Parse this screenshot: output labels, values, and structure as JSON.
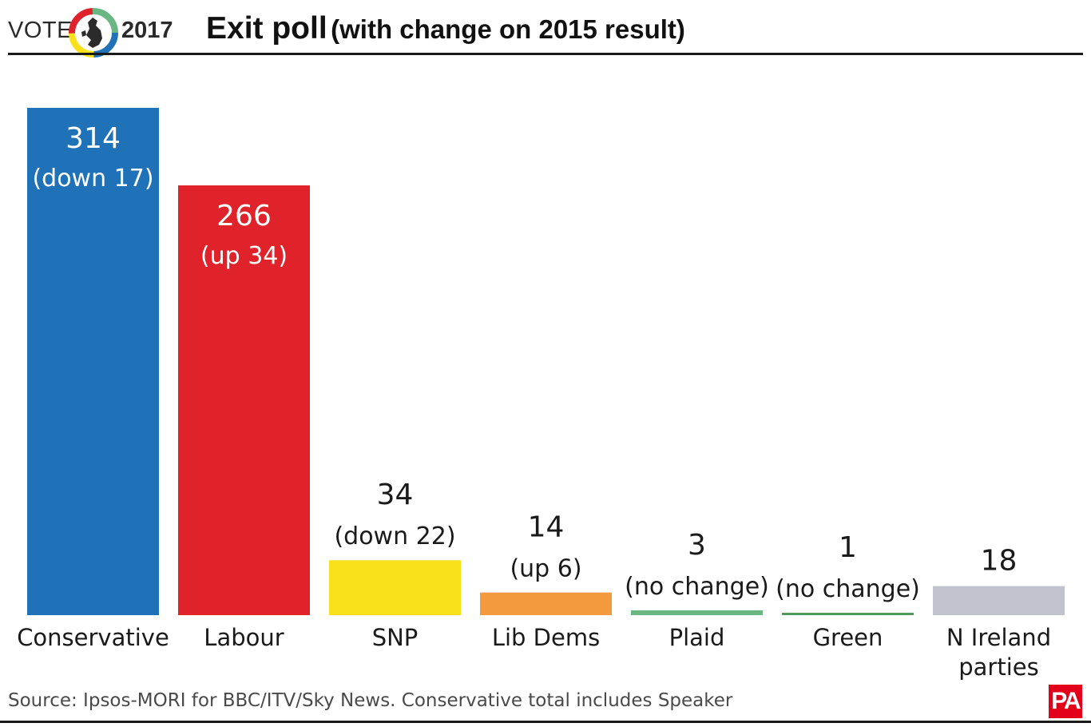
{
  "header": {
    "vote_label": "VOTE",
    "year": "2017",
    "title_main": "Exit poll",
    "title_sub": "(with change on 2015 result)"
  },
  "chart_data": {
    "type": "bar",
    "categories": [
      "Conservative",
      "Labour",
      "SNP",
      "Lib Dems",
      "Plaid",
      "Green",
      "N Ireland parties"
    ],
    "category_lines": [
      [
        "Conservative"
      ],
      [
        "Labour"
      ],
      [
        "SNP"
      ],
      [
        "Lib Dems"
      ],
      [
        "Plaid"
      ],
      [
        "Green"
      ],
      [
        "N Ireland",
        "parties"
      ]
    ],
    "values": [
      314,
      266,
      34,
      14,
      3,
      1,
      18
    ],
    "changes": [
      "(down 17)",
      "(up 34)",
      "(down 22)",
      "(up 6)",
      "(no change)",
      "(no change)",
      null
    ],
    "colors": [
      "#1f72b8",
      "#e0232a",
      "#f9e11b",
      "#f39a3e",
      "#6ab783",
      "#4f9a5a",
      "#c2c1ce"
    ],
    "ylim": [
      0,
      314
    ],
    "grid": false,
    "legend": "none"
  },
  "footer": {
    "source": "Source: Ipsos-MORI for BBC/ITV/Sky News. Conservative total includes Speaker",
    "logo_text": "PA"
  }
}
